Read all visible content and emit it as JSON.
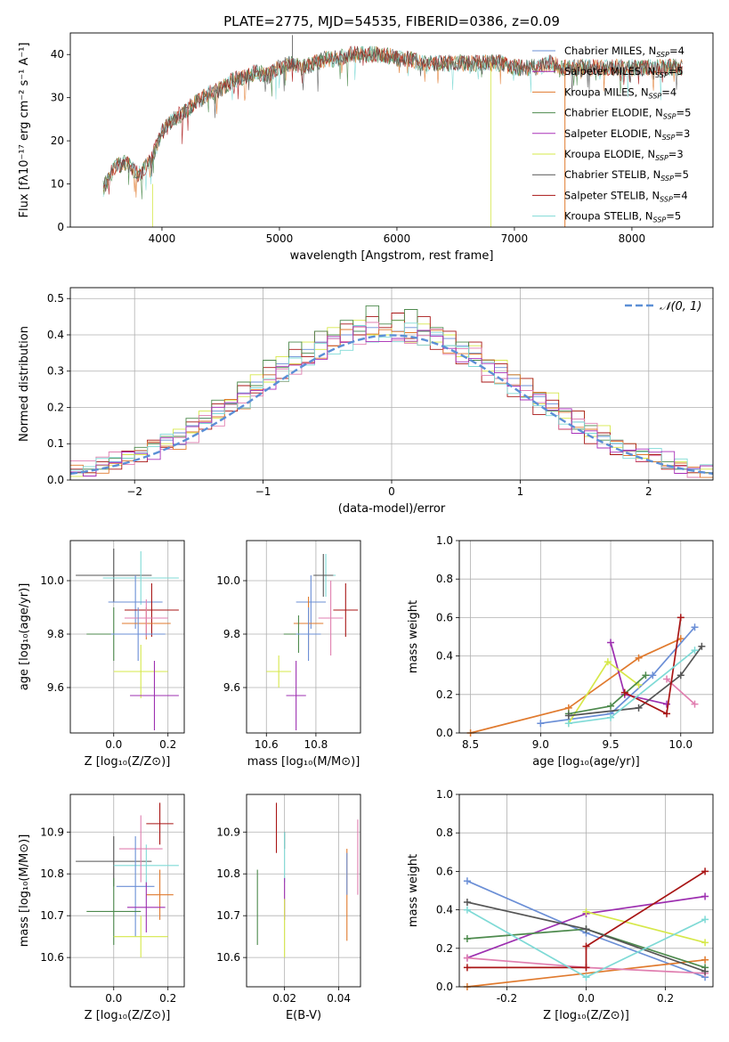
{
  "figure_title": "PLATE=2775, MJD=54535, FIBERID=0386, z=0.09",
  "colors": {
    "Chabrier MILES": "#6b8fd6",
    "Salpeter MILES": "#9d2fb0",
    "Kroupa MILES": "#e07a2e",
    "Chabrier ELODIE": "#4d8a4d",
    "Salpeter ELODIE": "#a830b8",
    "Kroupa ELODIE": "#d6e84a",
    "Chabrier STELIB": "#555555",
    "Salpeter STELIB": "#a81515",
    "Kroupa STELIB": "#7fdad6",
    "Pink": "#e07fb0",
    "normal_curve": "#5b8fd6"
  },
  "chart_data": [
    {
      "id": "spectrum",
      "type": "line",
      "title": "PLATE=2775, MJD=54535, FIBERID=0386, z=0.09",
      "xlabel": "wavelength [Angstrom, rest frame]",
      "ylabel": "Flux [fλ10⁻¹⁷ erg cm⁻² s⁻¹ A⁻¹]",
      "xlim": [
        3220,
        8690
      ],
      "ylim": [
        0,
        45
      ],
      "xticks": [
        4000,
        5000,
        6000,
        7000,
        8000
      ],
      "yticks": [
        0,
        10,
        20,
        30,
        40
      ],
      "grid": false,
      "legend_position": "top-right",
      "x": [
        3500,
        3600,
        3700,
        3800,
        3900,
        4000,
        4100,
        4200,
        4300,
        4400,
        4500,
        4600,
        4700,
        4800,
        4900,
        5000,
        5100,
        5200,
        5300,
        5400,
        5500,
        5600,
        5700,
        5800,
        5900,
        6000,
        6100,
        6200,
        6300,
        6400,
        6500,
        6600,
        6700,
        6800,
        6900,
        7000,
        7100,
        7200,
        7300,
        7400,
        7500,
        7600,
        7700,
        7800,
        7900,
        8000,
        8100,
        8200,
        8300,
        8400
      ],
      "y": [
        9,
        14,
        15,
        12,
        15,
        22,
        25,
        27,
        29,
        31,
        32,
        34,
        35,
        36,
        35,
        37,
        38,
        37,
        38,
        39,
        39,
        40,
        40,
        40,
        40,
        39,
        39,
        38,
        38,
        38,
        38,
        38,
        38,
        38,
        38,
        37,
        37,
        37,
        38,
        37,
        37,
        37,
        37,
        37,
        37,
        37,
        37,
        37,
        37,
        37
      ],
      "series": [
        {
          "name": "Chabrier MILES",
          "nssp": "4"
        },
        {
          "name": "Salpeter MILES",
          "nssp": "5"
        },
        {
          "name": "Kroupa MILES",
          "nssp": "4"
        },
        {
          "name": "Chabrier ELODIE",
          "nssp": "5"
        },
        {
          "name": "Salpeter ELODIE",
          "nssp": "3"
        },
        {
          "name": "Kroupa ELODIE",
          "nssp": "3"
        },
        {
          "name": "Chabrier STELIB",
          "nssp": "5"
        },
        {
          "name": "Salpeter STELIB",
          "nssp": "4"
        },
        {
          "name": "Kroupa STELIB",
          "nssp": "5"
        }
      ]
    },
    {
      "id": "residuals",
      "type": "histogram",
      "xlabel": "(data-model)/error",
      "ylabel": "Normed distribution",
      "xlim": [
        -2.5,
        2.5
      ],
      "ylim": [
        0,
        0.53
      ],
      "xticks": [
        -2,
        -1,
        0,
        1,
        2
      ],
      "yticks": [
        0.0,
        0.1,
        0.2,
        0.3,
        0.4,
        0.5
      ],
      "grid": true,
      "legend_position": "top-right",
      "legend_label": "𝒩(0, 1)",
      "bin_edges_start": -2.5,
      "bin_width": 0.1,
      "series_values": [
        [
          0.02,
          0.03,
          0.04,
          0.05,
          0.06,
          0.08,
          0.1,
          0.11,
          0.13,
          0.15,
          0.17,
          0.19,
          0.21,
          0.24,
          0.27,
          0.29,
          0.32,
          0.34,
          0.36,
          0.38,
          0.39,
          0.4,
          0.41,
          0.42,
          0.4,
          0.41,
          0.42,
          0.41,
          0.4,
          0.39,
          0.37,
          0.35,
          0.33,
          0.31,
          0.28,
          0.26,
          0.23,
          0.21,
          0.19,
          0.16,
          0.14,
          0.12,
          0.1,
          0.08,
          0.07,
          0.05,
          0.04,
          0.03,
          0.03,
          0.02
        ],
        [
          0.01,
          0.02,
          0.04,
          0.04,
          0.07,
          0.07,
          0.1,
          0.1,
          0.14,
          0.13,
          0.19,
          0.17,
          0.22,
          0.23,
          0.29,
          0.27,
          0.34,
          0.32,
          0.38,
          0.36,
          0.42,
          0.38,
          0.44,
          0.4,
          0.4,
          0.44,
          0.38,
          0.43,
          0.38,
          0.4,
          0.34,
          0.37,
          0.3,
          0.33,
          0.26,
          0.28,
          0.21,
          0.24,
          0.17,
          0.19,
          0.12,
          0.15,
          0.09,
          0.1,
          0.06,
          0.07,
          0.04,
          0.05,
          0.02,
          0.03
        ],
        [
          0.03,
          0.02,
          0.05,
          0.03,
          0.08,
          0.05,
          0.11,
          0.09,
          0.12,
          0.16,
          0.14,
          0.21,
          0.19,
          0.26,
          0.24,
          0.31,
          0.28,
          0.36,
          0.34,
          0.41,
          0.37,
          0.43,
          0.4,
          0.45,
          0.42,
          0.46,
          0.39,
          0.45,
          0.36,
          0.41,
          0.32,
          0.38,
          0.27,
          0.32,
          0.23,
          0.28,
          0.18,
          0.22,
          0.14,
          0.19,
          0.1,
          0.13,
          0.07,
          0.1,
          0.05,
          0.07,
          0.03,
          0.04,
          0.02,
          0.02
        ],
        [
          0.02,
          0.03,
          0.03,
          0.06,
          0.06,
          0.09,
          0.1,
          0.12,
          0.12,
          0.17,
          0.17,
          0.22,
          0.21,
          0.27,
          0.26,
          0.33,
          0.31,
          0.38,
          0.35,
          0.41,
          0.4,
          0.44,
          0.41,
          0.48,
          0.43,
          0.44,
          0.47,
          0.41,
          0.42,
          0.37,
          0.38,
          0.33,
          0.33,
          0.28,
          0.29,
          0.23,
          0.24,
          0.19,
          0.19,
          0.14,
          0.15,
          0.11,
          0.11,
          0.08,
          0.08,
          0.05,
          0.05,
          0.03,
          0.03,
          0.02
        ]
      ]
    },
    {
      "id": "z-age",
      "type": "errorbar",
      "xlabel": "Z [log₁₀(Z/Z⊙)]",
      "ylabel": "age  [log₁₀(age/yr)]",
      "xlim": [
        -0.16,
        0.26
      ],
      "ylim": [
        9.43,
        10.15
      ],
      "xticks": [
        0.0,
        0.2
      ],
      "yticks": [
        9.6,
        9.8,
        10.0
      ],
      "grid": true
    },
    {
      "id": "mass-age",
      "type": "errorbar",
      "xlabel": "mass [log₁₀(M/M⊙)]",
      "xlim": [
        10.52,
        10.98
      ],
      "ylim": [
        9.43,
        10.15
      ],
      "xticks": [
        10.6,
        10.8
      ],
      "yticks": [
        9.6,
        9.8,
        10.0
      ],
      "grid": true
    },
    {
      "id": "age-weight",
      "type": "line",
      "xlabel": "age  [log₁₀(age/yr)]",
      "ylabel": "mass weight",
      "xlim": [
        8.42,
        10.23
      ],
      "ylim": [
        0,
        1.0
      ],
      "xticks": [
        8.5,
        9.0,
        9.5,
        10.0
      ],
      "yticks": [
        0.0,
        0.2,
        0.4,
        0.6,
        0.8,
        1.0
      ],
      "grid": true,
      "series": [
        {
          "color": "Kroupa MILES",
          "x": [
            8.5,
            9.2,
            9.7,
            10.0
          ],
          "y": [
            0.0,
            0.13,
            0.39,
            0.49
          ]
        },
        {
          "color": "Chabrier MILES",
          "x": [
            9.0,
            9.5,
            9.8,
            10.1
          ],
          "y": [
            0.05,
            0.1,
            0.3,
            0.55
          ]
        },
        {
          "color": "Salpeter MILES",
          "x": [
            9.5,
            9.6,
            9.9
          ],
          "y": [
            0.47,
            0.2,
            0.15
          ]
        },
        {
          "color": "Kroupa ELODIE",
          "x": [
            9.2,
            9.48,
            9.7
          ],
          "y": [
            0.05,
            0.37,
            0.25
          ]
        },
        {
          "color": "Chabrier ELODIE",
          "x": [
            9.2,
            9.5,
            9.75
          ],
          "y": [
            0.1,
            0.14,
            0.3
          ]
        },
        {
          "color": "Pink",
          "x": [
            9.9,
            10.1
          ],
          "y": [
            0.28,
            0.15
          ]
        },
        {
          "color": "Chabrier STELIB",
          "x": [
            9.2,
            9.7,
            10.0,
            10.15
          ],
          "y": [
            0.09,
            0.13,
            0.3,
            0.45
          ]
        },
        {
          "color": "Salpeter STELIB",
          "x": [
            9.6,
            9.9,
            10.0
          ],
          "y": [
            0.21,
            0.1,
            0.6
          ]
        },
        {
          "color": "Kroupa STELIB",
          "x": [
            9.2,
            9.5,
            10.1
          ],
          "y": [
            0.05,
            0.08,
            0.43
          ]
        }
      ]
    },
    {
      "id": "z-mass",
      "type": "errorbar",
      "xlabel": "Z [log₁₀(Z/Z⊙)]",
      "ylabel": "mass [log₁₀(M/M⊙)]",
      "xlim": [
        -0.16,
        0.26
      ],
      "ylim": [
        10.53,
        10.99
      ],
      "xticks": [
        0.0,
        0.2
      ],
      "yticks": [
        10.6,
        10.7,
        10.8,
        10.9
      ],
      "grid": true
    },
    {
      "id": "ebv-mass",
      "type": "errorbar",
      "xlabel": "E(B-V)",
      "xlim": [
        0.006,
        0.048
      ],
      "ylim": [
        10.53,
        10.99
      ],
      "xticks": [
        0.02,
        0.04
      ],
      "yticks": [
        10.6,
        10.7,
        10.8,
        10.9
      ],
      "grid": true
    },
    {
      "id": "z-weight",
      "type": "line",
      "xlabel": "Z [log₁₀(Z/Z⊙)]",
      "ylabel": "mass weight",
      "xlim": [
        -0.32,
        0.32
      ],
      "ylim": [
        0,
        1.0
      ],
      "xticks": [
        -0.2,
        0.0,
        0.2
      ],
      "yticks": [
        0.0,
        0.2,
        0.4,
        0.6,
        0.8,
        1.0
      ],
      "grid": true,
      "series": [
        {
          "color": "Chabrier MILES",
          "x": [
            -0.3,
            0.0,
            0.3
          ],
          "y": [
            0.55,
            0.28,
            0.05
          ]
        },
        {
          "color": "Kroupa MILES",
          "x": [
            -0.3,
            0.3
          ],
          "y": [
            0.0,
            0.14
          ]
        },
        {
          "color": "Salpeter MILES",
          "x": [
            -0.3,
            0.0,
            0.3
          ],
          "y": [
            0.15,
            0.38,
            0.47
          ]
        },
        {
          "color": "Chabrier ELODIE",
          "x": [
            -0.3,
            0.0,
            0.3
          ],
          "y": [
            0.25,
            0.3,
            0.1
          ]
        },
        {
          "color": "Kroupa ELODIE",
          "x": [
            0.0,
            0.3
          ],
          "y": [
            0.39,
            0.23
          ]
        },
        {
          "color": "Pink",
          "x": [
            -0.3,
            0.0,
            0.3
          ],
          "y": [
            0.15,
            0.1,
            0.07
          ]
        },
        {
          "color": "Salpeter STELIB",
          "x": [
            -0.3,
            0.0,
            0.0,
            0.3
          ],
          "y": [
            0.1,
            0.1,
            0.21,
            0.6
          ]
        },
        {
          "color": "Chabrier STELIB",
          "x": [
            -0.3,
            0.0,
            0.3
          ],
          "y": [
            0.44,
            0.3,
            0.08
          ]
        },
        {
          "color": "Kroupa STELIB",
          "x": [
            -0.3,
            0.0,
            0.3
          ],
          "y": [
            0.4,
            0.05,
            0.35
          ]
        }
      ]
    }
  ]
}
